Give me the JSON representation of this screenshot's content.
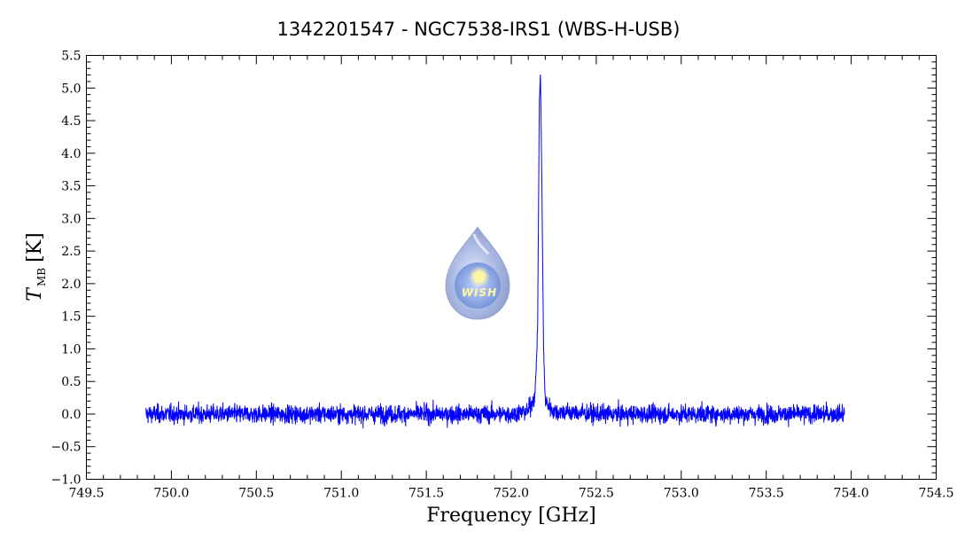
{
  "chart_data": {
    "type": "line",
    "title": "1342201547 - NGC7538-IRS1 (WBS-H-USB)",
    "xlabel": "Frequency [GHz]",
    "ylabel_main": "T",
    "ylabel_sub": "MB",
    "ylabel_unit": "[K]",
    "xlim": [
      749.5,
      754.5
    ],
    "ylim": [
      -1.0,
      5.5
    ],
    "xticks": [
      749.5,
      750.0,
      750.5,
      751.0,
      751.5,
      752.0,
      752.5,
      753.0,
      753.5,
      754.0,
      754.5
    ],
    "xtick_labels": [
      "749.5",
      "750.0",
      "750.5",
      "751.0",
      "751.5",
      "752.0",
      "752.5",
      "753.0",
      "753.5",
      "754.0",
      "754.5"
    ],
    "yticks": [
      -1.0,
      -0.5,
      0.0,
      0.5,
      1.0,
      1.5,
      2.0,
      2.5,
      3.0,
      3.5,
      4.0,
      4.5,
      5.0,
      5.5
    ],
    "ytick_labels": [
      "−1.0",
      "−0.5",
      "0.0",
      "0.5",
      "1.0",
      "1.5",
      "2.0",
      "2.5",
      "3.0",
      "3.5",
      "4.0",
      "4.5",
      "5.0",
      "5.5"
    ],
    "grid": false,
    "series": [
      {
        "color": "#0000ff",
        "x_range": [
          749.85,
          753.96
        ],
        "baseline": 0.0,
        "noise_rms": 0.07,
        "x": [
          749.85,
          750.5,
          751.0,
          751.5,
          752.0,
          752.1,
          752.14,
          752.155,
          752.165,
          752.172,
          752.18,
          752.19,
          752.2,
          752.25,
          752.5,
          753.0,
          753.5,
          753.96
        ],
        "y": [
          0.0,
          0.0,
          0.0,
          0.0,
          0.0,
          0.05,
          0.3,
          1.3,
          4.8,
          5.2,
          3.5,
          1.0,
          0.2,
          0.04,
          0.0,
          0.0,
          0.0,
          0.0
        ]
      }
    ],
    "watermark": {
      "label": "WISH"
    }
  }
}
